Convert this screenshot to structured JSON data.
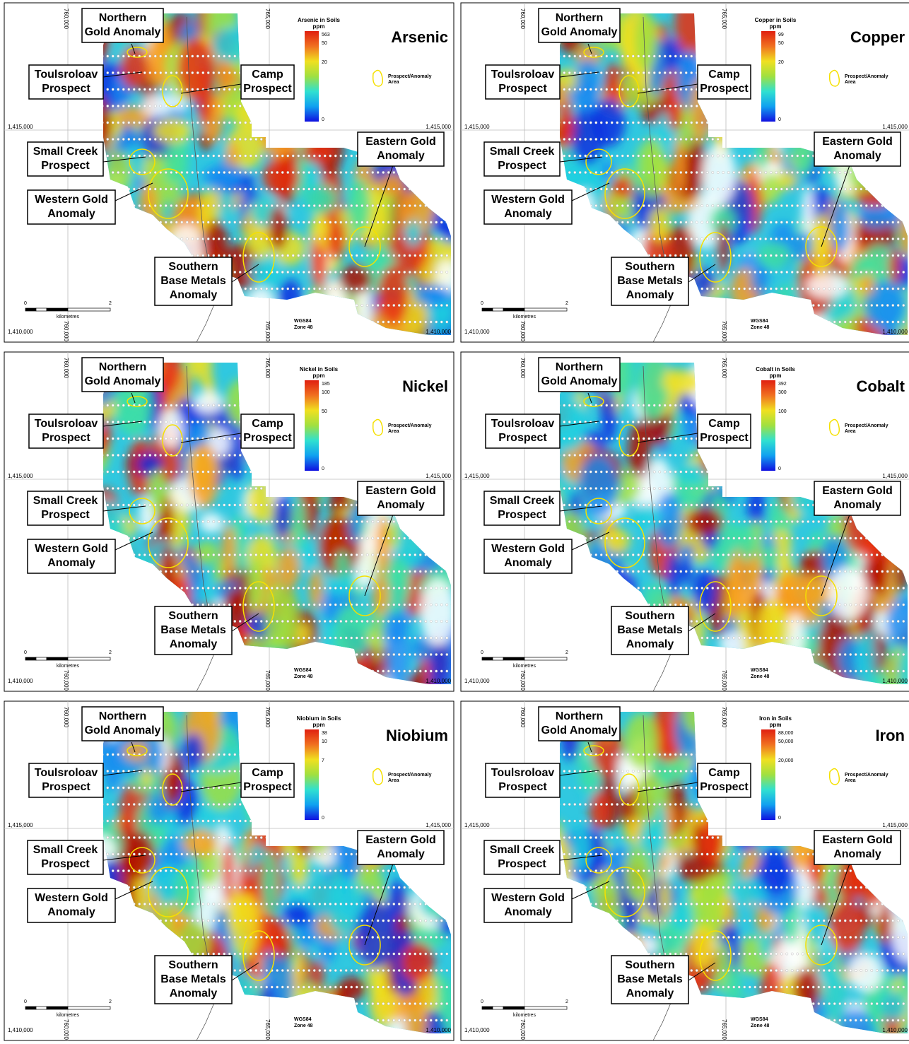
{
  "panels": [
    {
      "title": "Arsenic",
      "legend": {
        "title": "Arsenic in Soils",
        "unit": "ppm",
        "ticks": [
          "563",
          "50",
          "20",
          "0"
        ]
      }
    },
    {
      "title": "Copper",
      "legend": {
        "title": "Copper in Soils",
        "unit": "ppm",
        "ticks": [
          "99",
          "50",
          "20",
          "0"
        ]
      }
    },
    {
      "title": "Nickel",
      "legend": {
        "title": "Nickel in Soils",
        "unit": "ppm",
        "ticks": [
          "185",
          "100",
          "50",
          "0"
        ]
      }
    },
    {
      "title": "Cobalt",
      "legend": {
        "title": "Cobalt in Soils",
        "unit": "ppm",
        "ticks": [
          "392",
          "300",
          "100",
          "0"
        ]
      }
    },
    {
      "title": "Niobium",
      "legend": {
        "title": "Niobium in Soils",
        "unit": "ppm",
        "ticks": [
          "38",
          "10",
          "7",
          "0"
        ]
      }
    },
    {
      "title": "Iron",
      "legend": {
        "title": "Iron in Soils",
        "unit": "ppm",
        "ticks": [
          "88,000",
          "50,000",
          "20,000",
          "0"
        ]
      }
    }
  ],
  "anomaly_labels": [
    [
      "Northern",
      "Gold Anomaly"
    ],
    [
      "Toulsroloav",
      "Prospect"
    ],
    [
      "Camp",
      "Prospect"
    ],
    [
      "Small Creek",
      "Prospect"
    ],
    [
      "Western Gold",
      "Anomaly"
    ],
    [
      "Eastern Gold",
      "Anomaly"
    ],
    [
      "Southern",
      "Base Metals",
      "Anomaly"
    ]
  ],
  "prospect_legend": [
    "Prospect/Anomaly",
    "Area"
  ],
  "eastings": [
    "760,000",
    "765,000"
  ],
  "northings": [
    "1,415,000",
    "1,410,000"
  ],
  "scale_bar": {
    "start": "0",
    "end": "2",
    "unit": "kilometres"
  },
  "datum": [
    "WGS84",
    "Zone 48"
  ]
}
